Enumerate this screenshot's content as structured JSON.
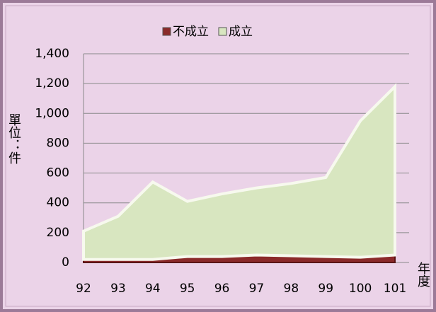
{
  "chart_data": {
    "type": "stacked_area",
    "categories": [
      "92",
      "93",
      "94",
      "95",
      "96",
      "97",
      "98",
      "99",
      "100",
      "101"
    ],
    "series": [
      {
        "name": "不成立",
        "color": "#8b2a2a",
        "values": [
          20,
          20,
          20,
          40,
          40,
          50,
          45,
          40,
          35,
          50
        ]
      },
      {
        "name": "成立",
        "color": "#d8e6c0",
        "values": [
          190,
          290,
          520,
          370,
          420,
          450,
          485,
          530,
          915,
          1130
        ]
      }
    ],
    "ylim": [
      0,
      1400
    ],
    "yticks": [
      0,
      200,
      400,
      600,
      800,
      {
        "value": 1000,
        "label": "1,000"
      },
      {
        "value": 1200,
        "label": "1,200"
      },
      {
        "value": 1400,
        "label": "1,400"
      }
    ],
    "y_label": "單位：件",
    "x_label": "年度",
    "grid": true,
    "legend": "top"
  }
}
